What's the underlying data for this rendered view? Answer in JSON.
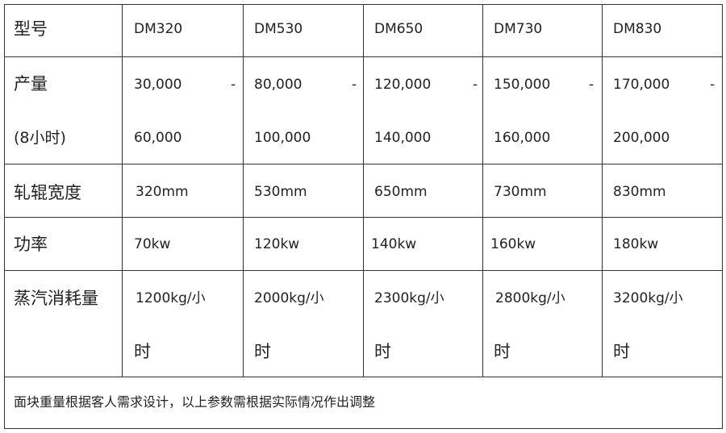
{
  "headers": {
    "model": "型号",
    "output": "产量",
    "output_unit": "(8小时)",
    "width": "轧辊宽度",
    "power": "功率",
    "steam": "蒸汽消耗量"
  },
  "models": [
    {
      "name": "DM320",
      "out_min": "30,000",
      "out_max": "60,000",
      "width": "320mm",
      "power": "70kw",
      "steam": "1200kg/小",
      "steam_tail": "时"
    },
    {
      "name": "DM530",
      "out_min": "80,000",
      "out_max": "100,000",
      "width": "530mm",
      "power": "120kw",
      "steam": "2000kg/小",
      "steam_tail": "时"
    },
    {
      "name": "DM650",
      "out_min": "120,000",
      "out_max": "140,000",
      "width": "650mm",
      "power": "140kw",
      "steam": "2300kg/小",
      "steam_tail": "时"
    },
    {
      "name": "DM730",
      "out_min": "150,000",
      "out_max": "160,000",
      "width": "730mm",
      "power": "160kw",
      "steam": "2800kg/小",
      "steam_tail": "时"
    },
    {
      "name": "DM830",
      "out_min": "170,000",
      "out_max": "200,000",
      "width": "830mm",
      "power": "180kw",
      "steam": "3200kg/小",
      "steam_tail": "时"
    }
  ],
  "dash": "-",
  "note": "面块重量根据客人需求设计，以上参数需根据实际情况作出调整"
}
